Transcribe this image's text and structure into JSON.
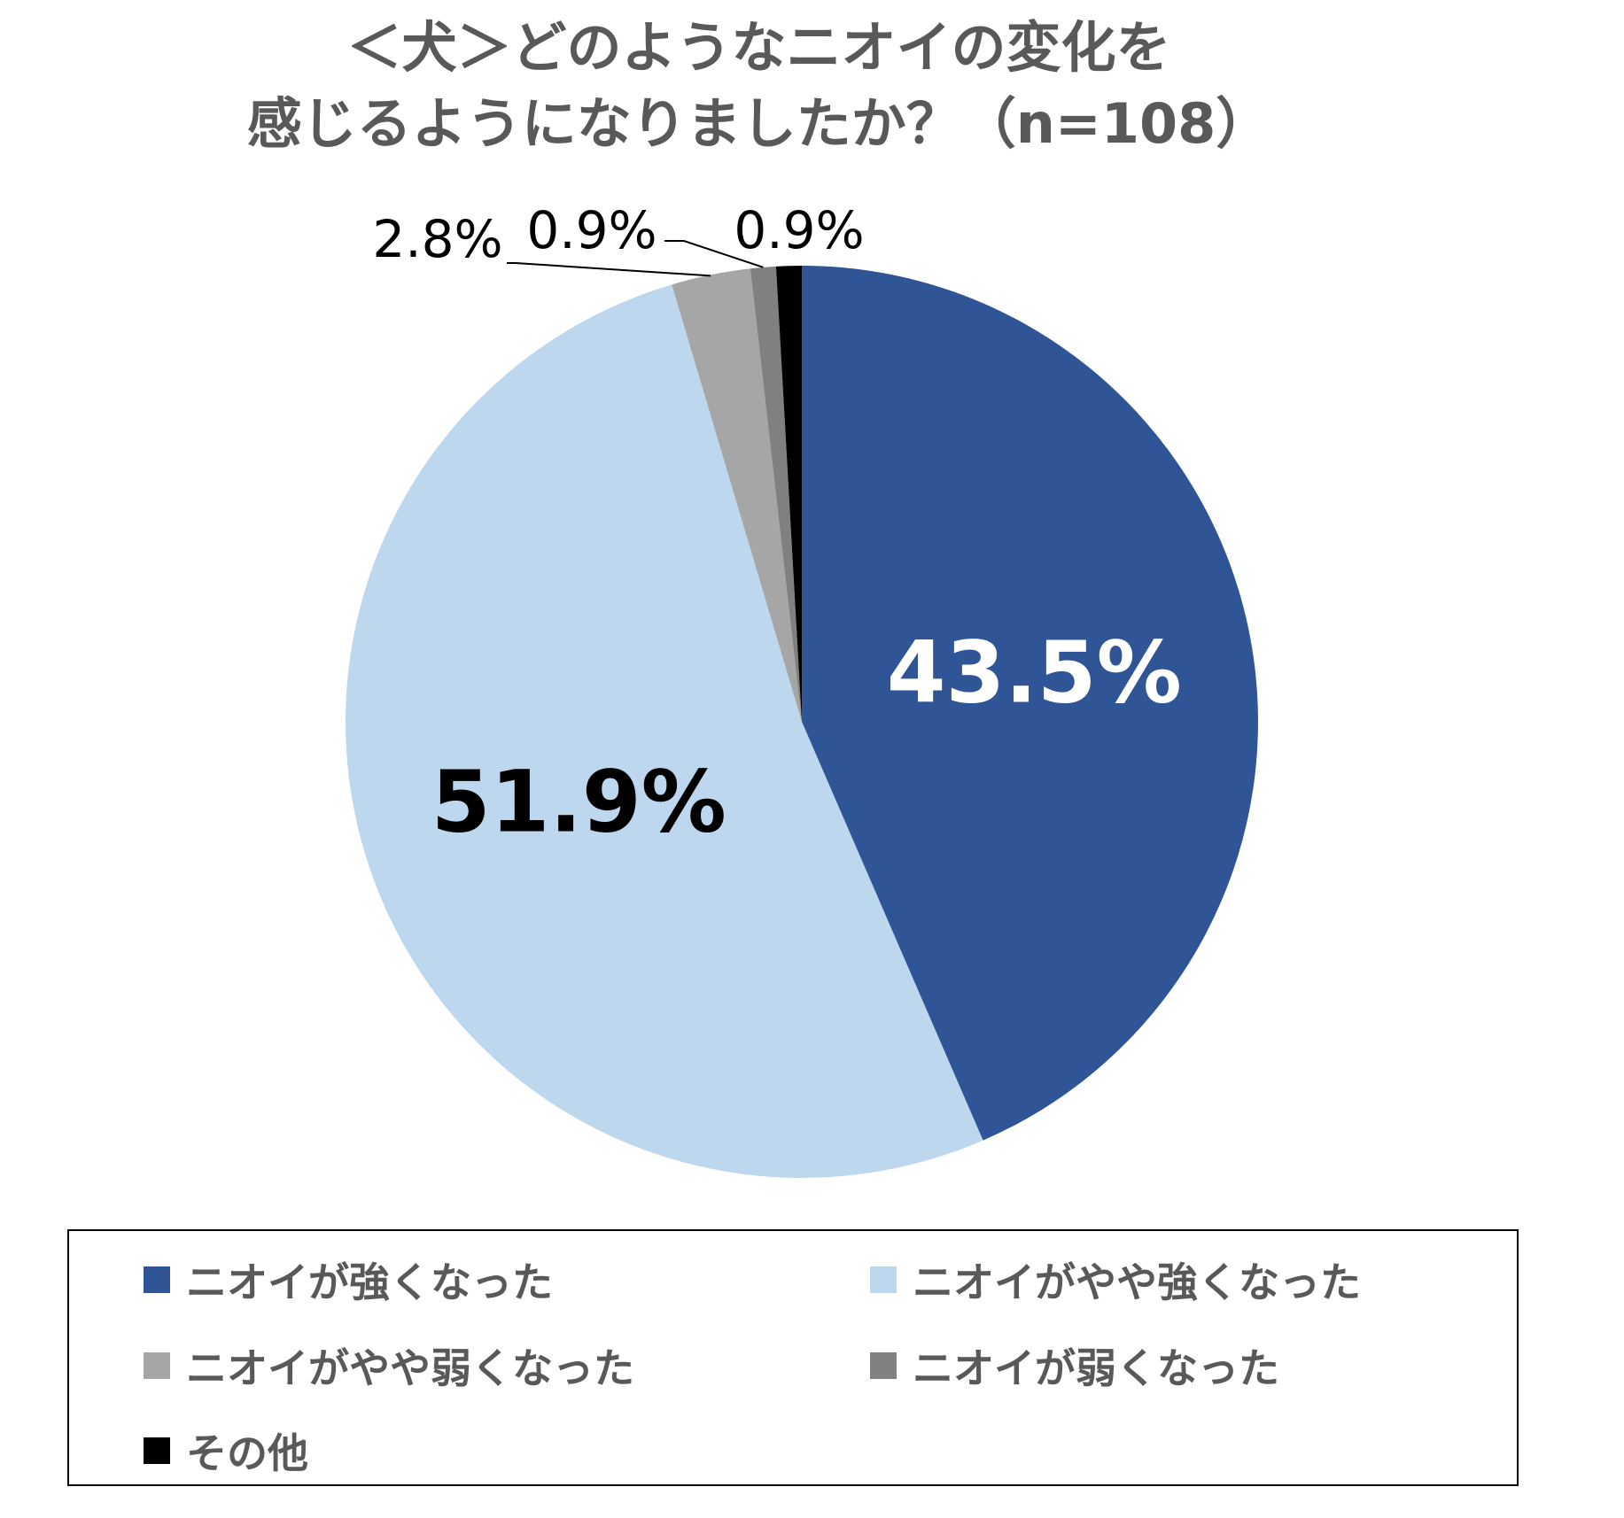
{
  "title_line1": "＜犬＞どのようなニオイの変化を",
  "title_line2": "感じるようになりましたか？（n=108）",
  "chart_data": {
    "type": "pie",
    "title": "＜犬＞どのようなニオイの変化を感じるようになりましたか？（n=108）",
    "slices": [
      {
        "label": "ニオイが強くなった",
        "value": 43.5,
        "display": "43.5%",
        "color": "#2F5597"
      },
      {
        "label": "ニオイがやや強くなった",
        "value": 51.9,
        "display": "51.9%",
        "color": "#BDD7EE"
      },
      {
        "label": "ニオイがやや弱くなった",
        "value": 2.8,
        "display": "2.8%",
        "color": "#A6A6A6"
      },
      {
        "label": "ニオイが弱くなった",
        "value": 0.9,
        "display": "0.9%",
        "color": "#808080"
      },
      {
        "label": "その他",
        "value": 0.9,
        "display": "0.9%",
        "color": "#000000"
      }
    ],
    "legend_position": "bottom"
  }
}
